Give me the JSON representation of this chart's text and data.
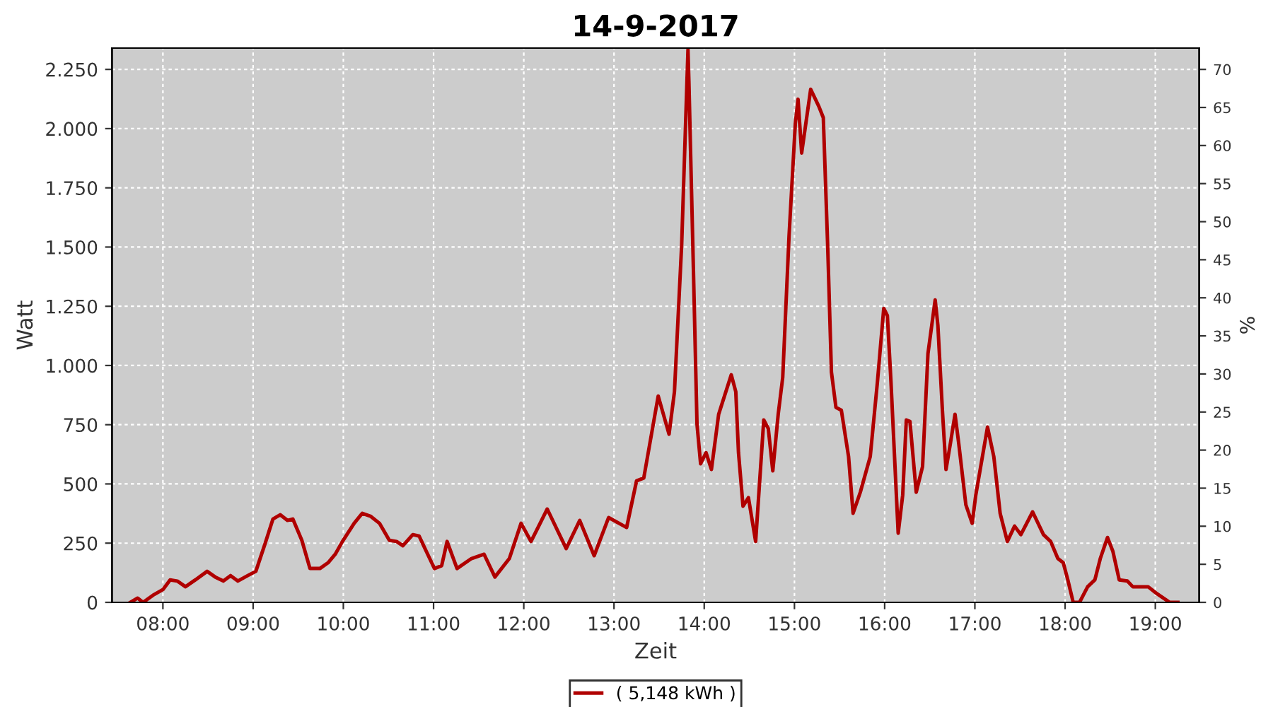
{
  "chart_data": {
    "type": "line",
    "title": "14-9-2017",
    "xlabel": "Zeit",
    "ylabel": "Watt",
    "y2label": "%",
    "xlim": [
      7.436,
      19.486
    ],
    "ylim": [
      0,
      2340
    ],
    "y2lim": [
      0,
      72.8
    ],
    "xticks": [
      {
        "value": 8,
        "label": "08:00"
      },
      {
        "value": 9,
        "label": "09:00"
      },
      {
        "value": 10,
        "label": "10:00"
      },
      {
        "value": 11,
        "label": "11:00"
      },
      {
        "value": 12,
        "label": "12:00"
      },
      {
        "value": 13,
        "label": "13:00"
      },
      {
        "value": 14,
        "label": "14:00"
      },
      {
        "value": 15,
        "label": "15:00"
      },
      {
        "value": 16,
        "label": "16:00"
      },
      {
        "value": 17,
        "label": "17:00"
      },
      {
        "value": 18,
        "label": "18:00"
      },
      {
        "value": 19,
        "label": "19:00"
      }
    ],
    "yticks": [
      0,
      250,
      500,
      750,
      {
        "value": 1000,
        "label": "1.000"
      },
      {
        "value": 1250,
        "label": "1.250"
      },
      {
        "value": 1500,
        "label": "1.500"
      },
      {
        "value": 1750,
        "label": "1.750"
      },
      {
        "value": 2000,
        "label": "2.000"
      },
      {
        "value": 2250,
        "label": "2.250"
      }
    ],
    "y2ticks": [
      0,
      5,
      10,
      15,
      20,
      25,
      30,
      35,
      40,
      45,
      50,
      55,
      60,
      65,
      70
    ],
    "grid": true,
    "legend": "bottom",
    "marker": "none",
    "line_style": "solid",
    "series": [
      {
        "name": "( 5,148 kWh )",
        "color": "#b00000",
        "x": [
          7.64,
          7.72,
          7.78,
          7.89,
          8.0,
          8.08,
          8.16,
          8.25,
          8.36,
          8.49,
          8.58,
          8.67,
          8.75,
          8.83,
          8.94,
          9.03,
          9.13,
          9.22,
          9.3,
          9.38,
          9.44,
          9.54,
          9.63,
          9.74,
          9.83,
          9.91,
          9.99,
          10.12,
          10.21,
          10.3,
          10.4,
          10.51,
          10.59,
          10.66,
          10.77,
          10.84,
          10.92,
          11.01,
          11.09,
          11.15,
          11.26,
          11.42,
          11.56,
          11.68,
          11.84,
          11.97,
          12.08,
          12.26,
          12.47,
          12.62,
          12.78,
          12.94,
          13.14,
          13.25,
          13.33,
          13.49,
          13.61,
          13.67,
          13.75,
          13.82,
          13.83,
          13.88,
          13.92,
          13.96,
          14.02,
          14.08,
          14.16,
          14.3,
          14.35,
          14.38,
          14.43,
          14.49,
          14.57,
          14.66,
          14.71,
          14.76,
          14.82,
          14.87,
          14.94,
          15.01,
          15.04,
          15.08,
          15.18,
          15.27,
          15.32,
          15.37,
          15.41,
          15.46,
          15.52,
          15.6,
          15.65,
          15.73,
          15.84,
          15.92,
          15.99,
          16.03,
          16.07,
          16.12,
          16.15,
          16.2,
          16.24,
          16.28,
          16.35,
          16.42,
          16.48,
          16.56,
          16.59,
          16.64,
          16.68,
          16.73,
          16.78,
          16.82,
          16.9,
          16.97,
          17.01,
          17.14,
          17.21,
          17.28,
          17.36,
          17.44,
          17.51,
          17.64,
          17.76,
          17.84,
          17.92,
          17.98,
          18.03,
          18.09,
          18.16,
          18.25,
          18.33,
          18.39,
          18.47,
          18.53,
          18.6,
          18.69,
          18.75,
          18.92,
          19.02,
          19.16,
          19.25
        ],
        "values": [
          0,
          18,
          0,
          30,
          54,
          95,
          90,
          66,
          95,
          131,
          107,
          90,
          113,
          90,
          113,
          131,
          245,
          352,
          370,
          346,
          352,
          262,
          143,
          143,
          167,
          203,
          257,
          334,
          376,
          364,
          334,
          262,
          257,
          239,
          286,
          280,
          215,
          143,
          155,
          257,
          143,
          185,
          203,
          107,
          185,
          334,
          257,
          394,
          227,
          346,
          197,
          358,
          316,
          513,
          525,
          871,
          710,
          889,
          1510,
          2333,
          2202,
          1408,
          752,
          585,
          632,
          561,
          794,
          961,
          889,
          632,
          406,
          442,
          257,
          770,
          734,
          555,
          794,
          949,
          1545,
          2023,
          2124,
          1897,
          2166,
          2094,
          2046,
          1486,
          972,
          823,
          811,
          615,
          376,
          465,
          615,
          931,
          1241,
          1211,
          931,
          531,
          292,
          453,
          770,
          764,
          465,
          573,
          1050,
          1277,
          1169,
          811,
          561,
          674,
          794,
          674,
          412,
          334,
          453,
          740,
          615,
          376,
          257,
          322,
          286,
          382,
          286,
          257,
          185,
          167,
          95,
          0,
          0,
          66,
          95,
          185,
          274,
          215,
          95,
          90,
          66,
          66,
          36,
          0,
          0
        ]
      }
    ]
  }
}
